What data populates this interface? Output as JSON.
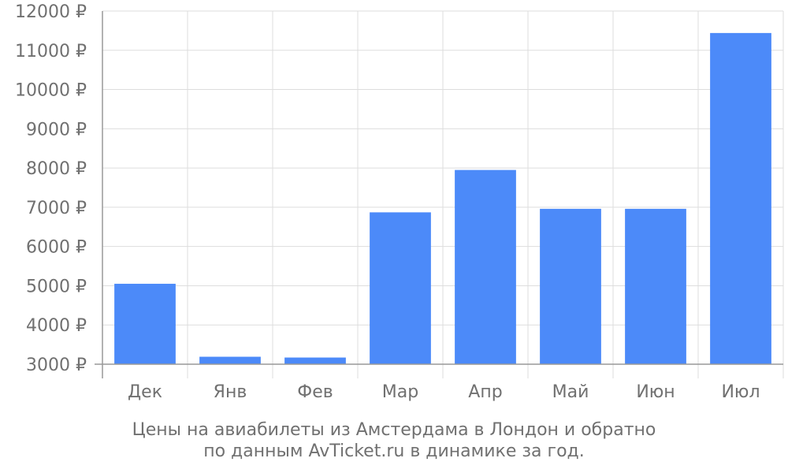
{
  "chart_data": {
    "type": "bar",
    "categories": [
      "Дек",
      "Янв",
      "Фев",
      "Мар",
      "Апр",
      "Май",
      "Июн",
      "Июл"
    ],
    "values": [
      5050,
      3190,
      3170,
      6870,
      7950,
      6960,
      6960,
      11440
    ],
    "ylim": [
      3000,
      12000
    ],
    "y_ticks": [
      "3000 ₽",
      "4000 ₽",
      "5000 ₽",
      "6000 ₽",
      "7000 ₽",
      "8000 ₽",
      "9000 ₽",
      "10000 ₽",
      "11000 ₽",
      "12000 ₽"
    ],
    "grid": true,
    "bar_color": "#4c8af9",
    "grid_color": "#dddddd",
    "text_color": "#707070"
  },
  "caption": {
    "line1": "Цены на авиабилеты из Амстердама в Лондон и обратно",
    "line2": "по данным AvTicket.ru в динамике за год."
  }
}
